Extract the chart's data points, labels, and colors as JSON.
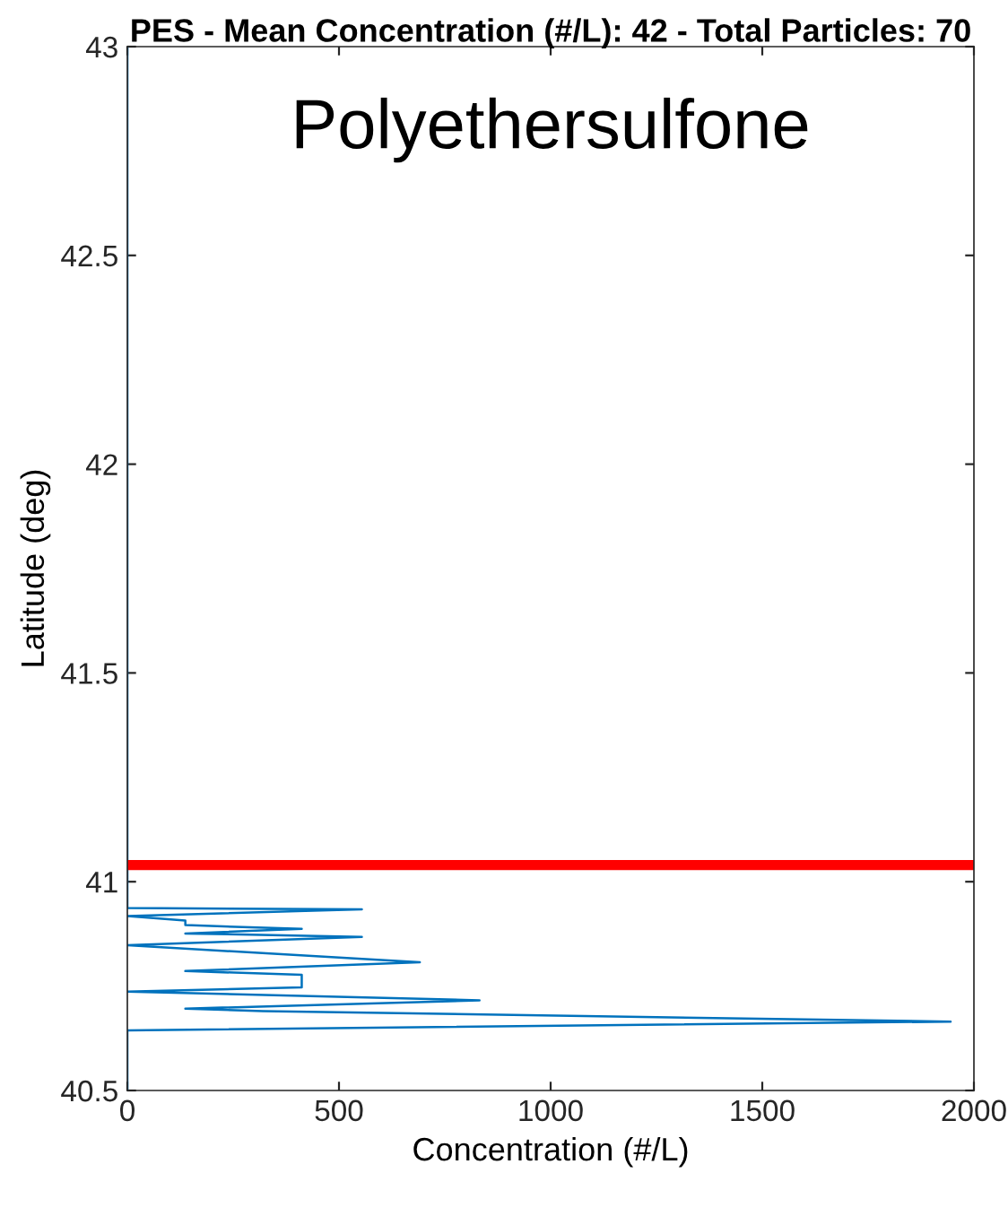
{
  "chart_data": {
    "type": "line",
    "title": "PES - Mean Concentration (#/L): 42 - Total Particles: 70",
    "xlabel": "Concentration (#/L)",
    "ylabel": "Latitude (deg)",
    "annotations": [
      "Polyethersulfone"
    ],
    "series": [
      {
        "color": "#0072bd",
        "x": [
          0,
          0,
          554,
          0,
          137,
          137,
          412,
          137,
          554,
          0,
          691,
          137,
          412,
          412,
          0,
          832,
          137,
          320,
          1945,
          0,
          0
        ],
        "values": [
          43,
          40.937,
          40.934,
          40.918,
          40.907,
          40.896,
          40.887,
          40.876,
          40.868,
          40.848,
          40.807,
          40.786,
          40.777,
          40.747,
          40.737,
          40.716,
          40.696,
          40.69,
          40.665,
          40.644,
          40.5
        ]
      }
    ],
    "ref_lines": [
      {
        "axis": "y",
        "value": 41.04,
        "color": "#ff0000"
      }
    ],
    "xlim": [
      0,
      2000
    ],
    "ylim": [
      40.5,
      43
    ],
    "xticks": [
      0,
      500,
      1000,
      1500,
      2000
    ],
    "yticks": [
      40.5,
      41,
      41.5,
      42,
      42.5,
      43
    ],
    "grid": false,
    "legend": false
  }
}
